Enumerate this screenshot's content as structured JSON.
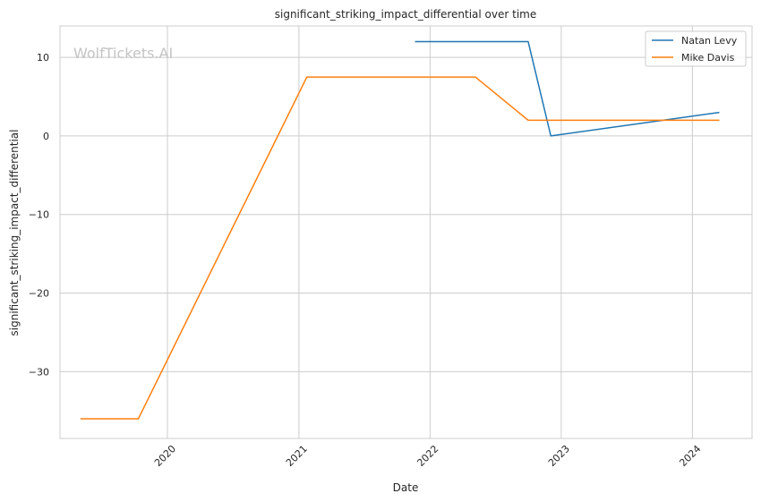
{
  "chart_data": {
    "type": "line",
    "title": "significant_striking_impact_differential over time",
    "xlabel": "Date",
    "ylabel": "significant_striking_impact_differential",
    "watermark": "WolfTickets.AI",
    "x_ticks": [
      "2020",
      "2021",
      "2022",
      "2023",
      "2024"
    ],
    "y_ticks": [
      10,
      0,
      -10,
      -20,
      -30
    ],
    "y_tick_labels": [
      "10",
      "0",
      "−10",
      "−20",
      "−30"
    ],
    "xlim": [
      "2019-03-08",
      "2024-06-15"
    ],
    "ylim": [
      -38.5,
      14.0
    ],
    "grid": true,
    "legend_position": "top-right",
    "series": [
      {
        "name": "Natan Levy",
        "color": "#1f77b4",
        "points": [
          {
            "x": "2021-11-20",
            "y": 12
          },
          {
            "x": "2022-10-01",
            "y": 12
          },
          {
            "x": "2022-12-03",
            "y": 0
          },
          {
            "x": "2024-03-16",
            "y": 3
          }
        ]
      },
      {
        "name": "Mike Davis",
        "color": "#ff7f0e",
        "points": [
          {
            "x": "2019-05-04",
            "y": -36
          },
          {
            "x": "2019-10-12",
            "y": -36
          },
          {
            "x": "2021-01-23",
            "y": 7.5
          },
          {
            "x": "2022-05-07",
            "y": 7.5
          },
          {
            "x": "2022-10-01",
            "y": 2
          },
          {
            "x": "2024-03-16",
            "y": 2
          }
        ]
      }
    ]
  }
}
